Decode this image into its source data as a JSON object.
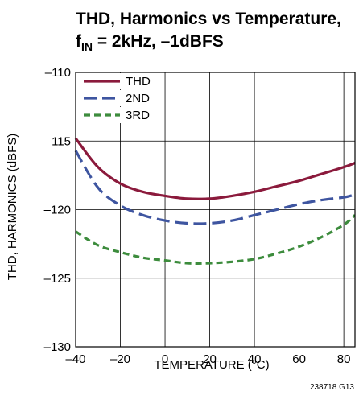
{
  "chart_data": {
    "type": "line",
    "title_line1": "THD, Harmonics vs Temperature,",
    "title_line2": {
      "main": "f",
      "sub": "IN",
      "rest": " = 2kHz, –1dBFS"
    },
    "xlabel": "TEMPERATURE (°C)",
    "ylabel": "THD, HARMONICS (dBFS)",
    "xlim": [
      -40,
      85
    ],
    "ylim": [
      -130,
      -110
    ],
    "x_ticks": [
      -40,
      -20,
      0,
      20,
      40,
      60,
      80
    ],
    "x_tick_labels": [
      "–40",
      "–20",
      "0",
      "20",
      "40",
      "60",
      "80"
    ],
    "y_ticks": [
      -110,
      -115,
      -120,
      -125,
      -130
    ],
    "y_tick_labels": [
      "–110",
      "–115",
      "–120",
      "–125",
      "–130"
    ],
    "grid": true,
    "legend_position": "top-left",
    "figure_id": "238718 G13",
    "series": [
      {
        "name": "THD",
        "color": "#8b1a3c",
        "dash": "solid",
        "x": [
          -40,
          -30,
          -20,
          -10,
          0,
          10,
          20,
          30,
          40,
          50,
          60,
          70,
          80,
          85
        ],
        "y": [
          -114.8,
          -116.9,
          -118.1,
          -118.7,
          -119.0,
          -119.2,
          -119.2,
          -119.0,
          -118.7,
          -118.3,
          -117.9,
          -117.4,
          -116.9,
          -116.6
        ]
      },
      {
        "name": "2ND",
        "color": "#3e55a0",
        "dash": "long",
        "x": [
          -40,
          -30,
          -20,
          -10,
          0,
          10,
          20,
          30,
          40,
          50,
          60,
          70,
          80,
          85
        ],
        "y": [
          -115.7,
          -118.4,
          -119.7,
          -120.4,
          -120.8,
          -121.0,
          -121.0,
          -120.8,
          -120.4,
          -120.0,
          -119.6,
          -119.3,
          -119.1,
          -118.9
        ]
      },
      {
        "name": "3RD",
        "color": "#3d8c3d",
        "dash": "short",
        "x": [
          -40,
          -30,
          -20,
          -10,
          0,
          10,
          20,
          30,
          40,
          50,
          60,
          70,
          80,
          85
        ],
        "y": [
          -121.6,
          -122.6,
          -123.1,
          -123.5,
          -123.7,
          -123.9,
          -123.9,
          -123.8,
          -123.6,
          -123.2,
          -122.7,
          -122.0,
          -121.1,
          -120.4
        ]
      }
    ]
  }
}
